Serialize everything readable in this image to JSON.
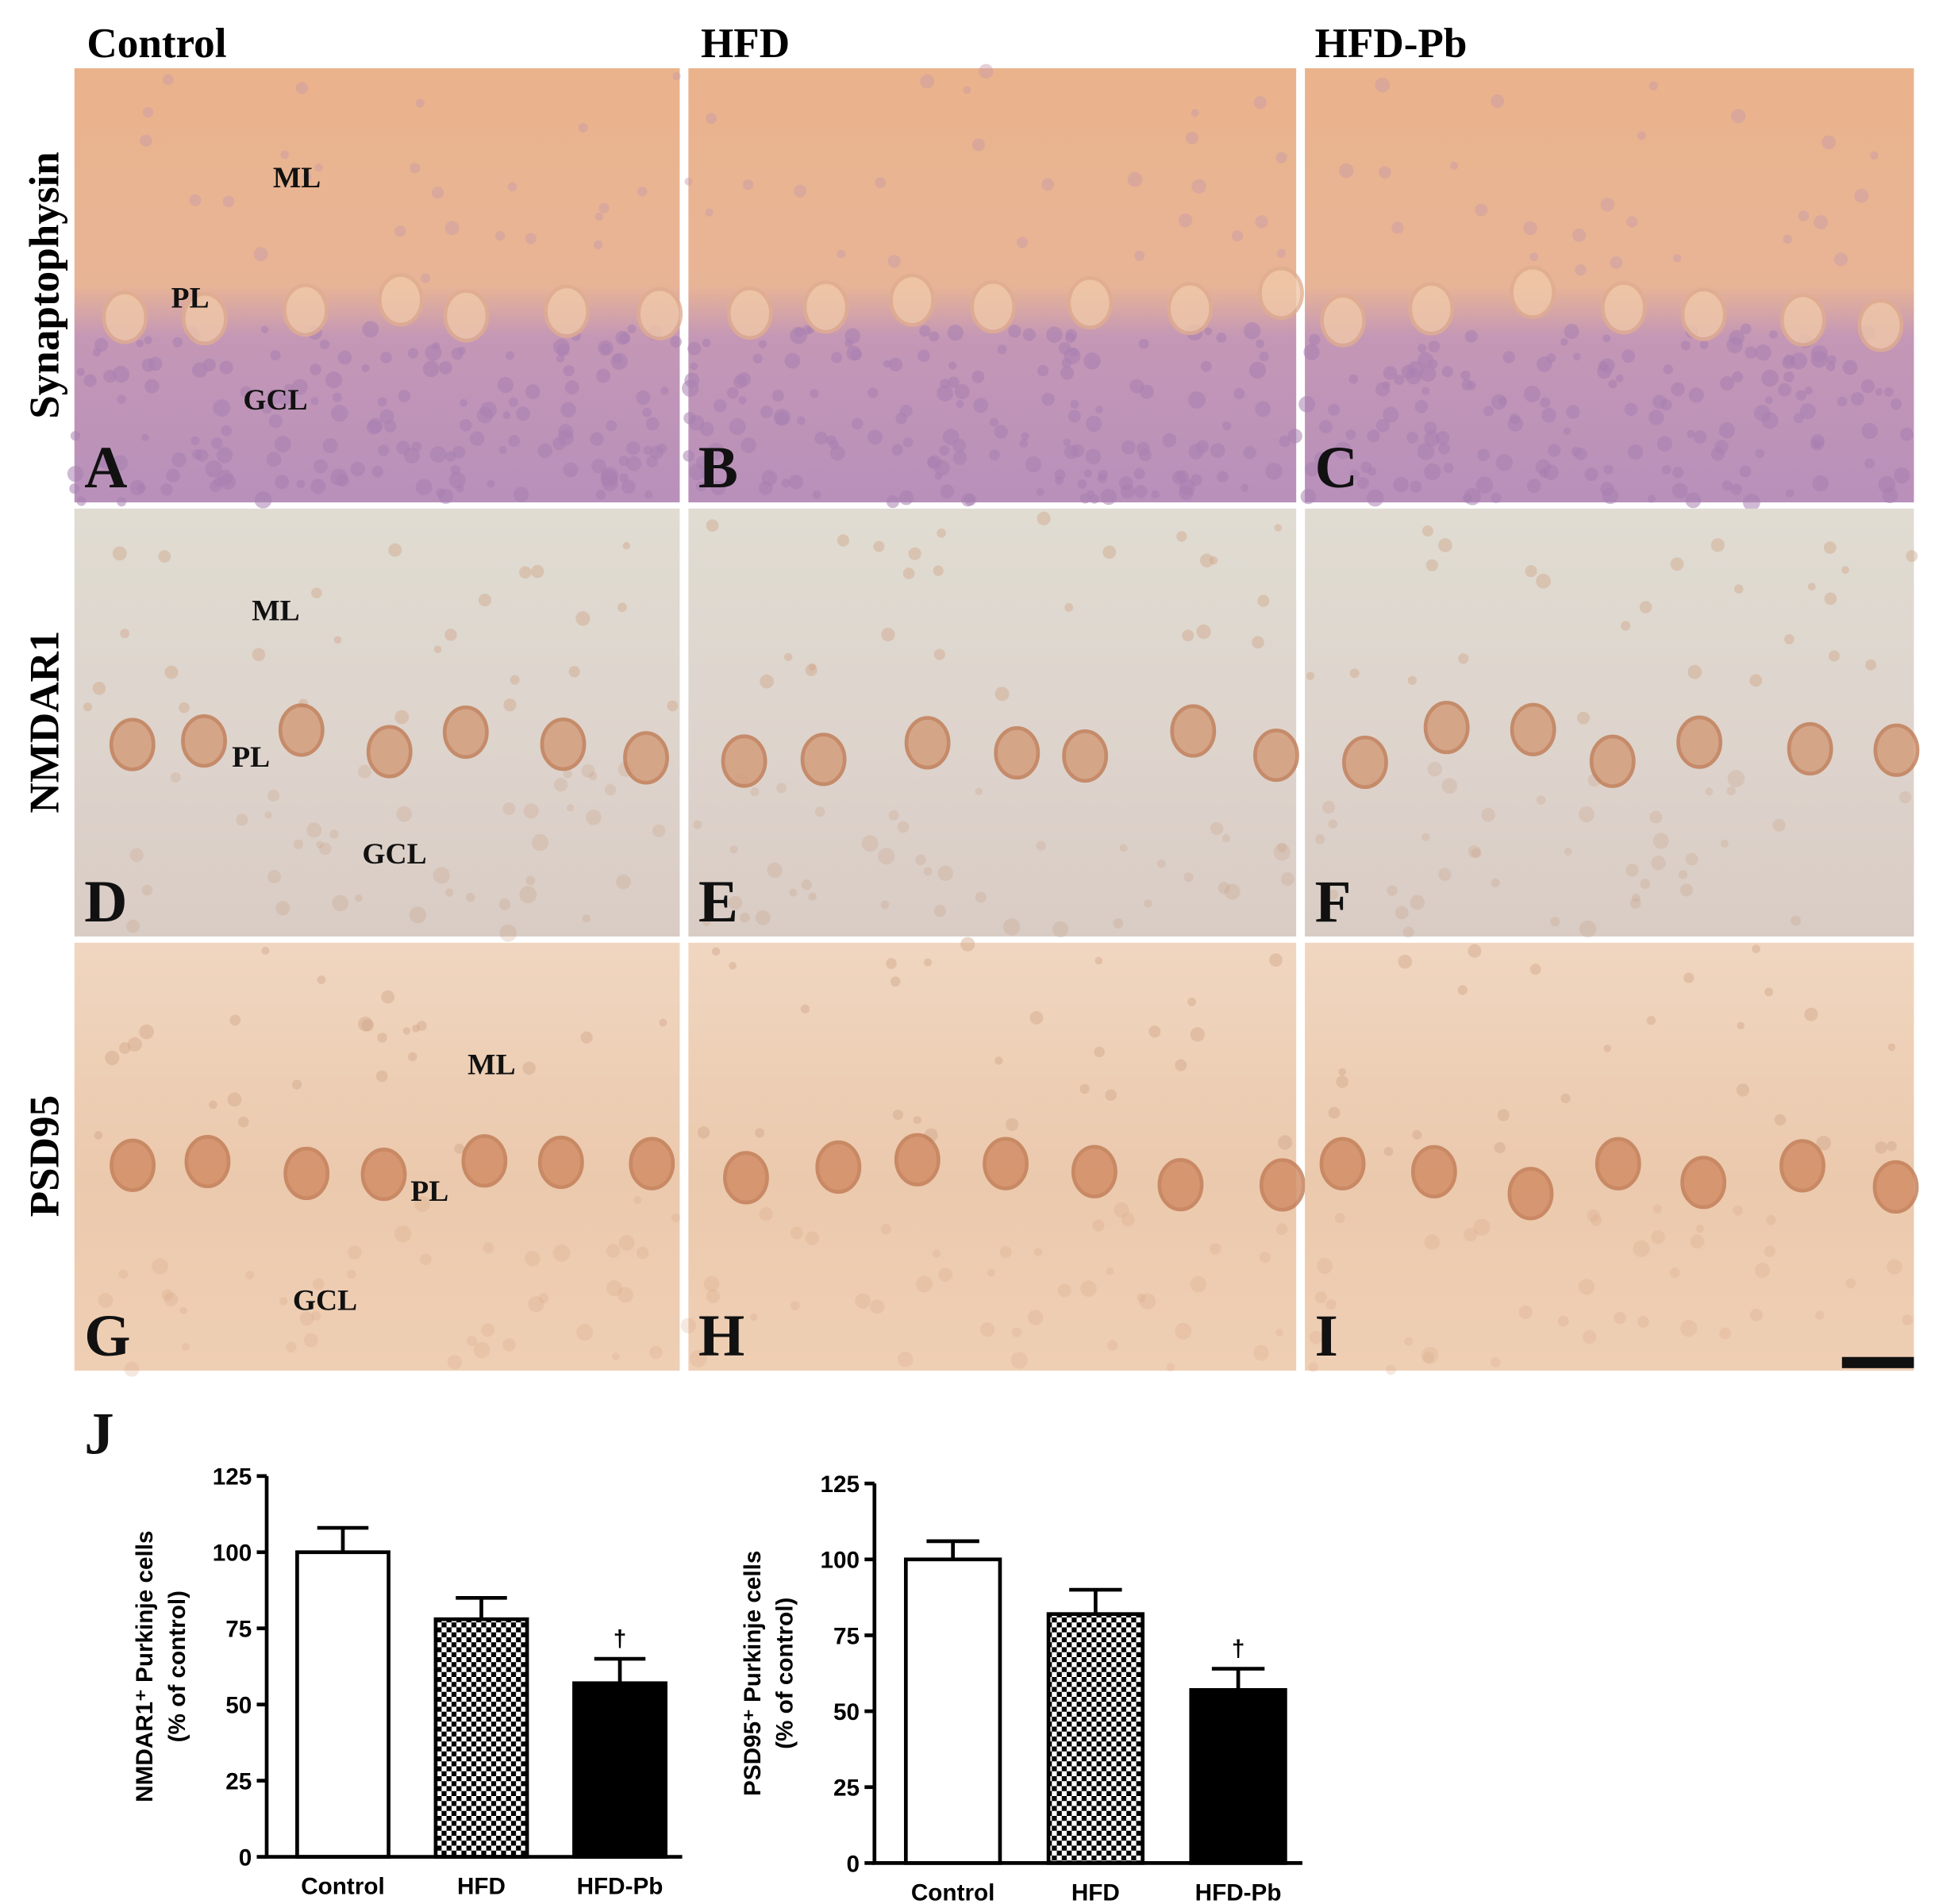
{
  "columns": [
    "Control",
    "HFD",
    "HFD-Pb"
  ],
  "rows": [
    "Synaptophysin",
    "NMDAR1",
    "PSD95"
  ],
  "panels": [
    {
      "letter": "A",
      "layers": [
        "ML",
        "PL",
        "GCL"
      ]
    },
    {
      "letter": "B"
    },
    {
      "letter": "C"
    },
    {
      "letter": "D",
      "layers": [
        "ML",
        "PL",
        "GCL"
      ]
    },
    {
      "letter": "E"
    },
    {
      "letter": "F"
    },
    {
      "letter": "G",
      "layers": [
        "ML",
        "PL",
        "GCL"
      ]
    },
    {
      "letter": "H"
    },
    {
      "letter": "I"
    }
  ],
  "chart_panel_letter": "J",
  "chart_data": [
    {
      "type": "bar",
      "ylabel": [
        "NMDAR1⁺ Purkinje cells",
        "(% of control)"
      ],
      "categories": [
        "Control",
        "HFD",
        "HFD-Pb"
      ],
      "values": [
        100,
        78,
        57
      ],
      "errors": [
        8,
        7,
        8
      ],
      "bar_fills": [
        "white",
        "checkerboard",
        "black"
      ],
      "ylim": [
        0,
        125
      ],
      "yticks": [
        0,
        25,
        50,
        75,
        100,
        125
      ],
      "annotations": [
        {
          "text": "†",
          "category": "HFD-Pb"
        }
      ]
    },
    {
      "type": "bar",
      "ylabel": [
        "PSD95⁺ Purkinje cells",
        "(% of control)"
      ],
      "categories": [
        "Control",
        "HFD",
        "HFD-Pb"
      ],
      "values": [
        100,
        82,
        57
      ],
      "errors": [
        6,
        8,
        7
      ],
      "bar_fills": [
        "white",
        "checkerboard",
        "black"
      ],
      "ylim": [
        0,
        125
      ],
      "yticks": [
        0,
        25,
        50,
        75,
        100,
        125
      ],
      "annotations": [
        {
          "text": "†",
          "category": "HFD-Pb"
        }
      ]
    }
  ]
}
